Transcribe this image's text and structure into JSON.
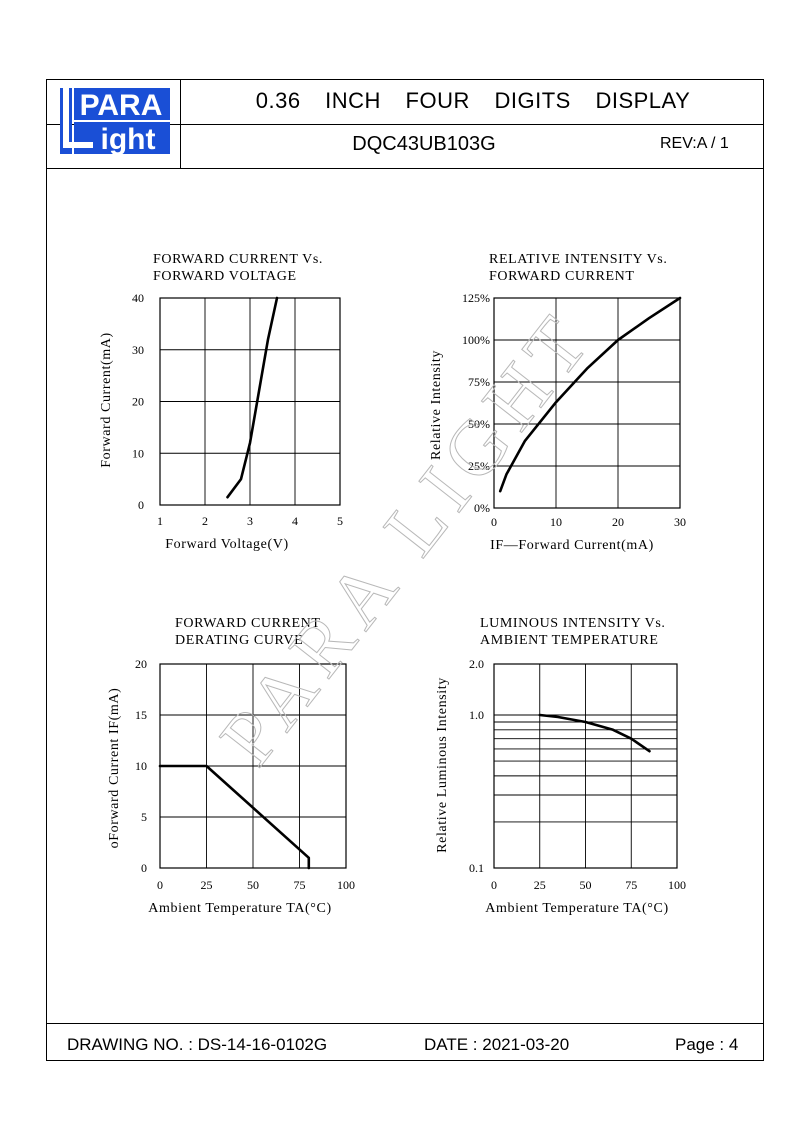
{
  "header": {
    "logo_top": "PARA",
    "logo_bottom": "ight",
    "title": "0.36 INCH FOUR DIGITS DISPLAY",
    "part_number": "DQC43UB103G",
    "revision": "REV:A / 1"
  },
  "watermark": "PARA LIGHT",
  "footer": {
    "drawing_no": "DRAWING NO. : DS-14-16-0102G",
    "date": "DATE : 2021-03-20",
    "page": "Page : 4"
  },
  "colors": {
    "logo_blue": "#1a4fd6",
    "ink": "#000000"
  },
  "chart_data": [
    {
      "type": "line",
      "title_line1": "FORWARD CURRENT Vs.",
      "title_line2": "FORWARD VOLTAGE",
      "xlabel": "Forward Voltage(V)",
      "ylabel": "Forward Current(mA)",
      "xlim": [
        1,
        5
      ],
      "ylim": [
        0,
        40
      ],
      "xticks": [
        "1",
        "2",
        "3",
        "4",
        "5"
      ],
      "yticks": [
        "0",
        "10",
        "20",
        "30",
        "40"
      ],
      "grid": true,
      "x": [
        2.5,
        2.8,
        3.0,
        3.2,
        3.4,
        3.6
      ],
      "y": [
        1.5,
        5,
        12,
        22,
        32,
        40
      ]
    },
    {
      "type": "line",
      "title_line1": "RELATIVE INTENSITY Vs.",
      "title_line2": "FORWARD CURRENT",
      "xlabel": "IF—Forward Current(mA)",
      "ylabel": "Relative Intensity",
      "xlim": [
        0,
        30
      ],
      "ylim": [
        0,
        125
      ],
      "xticks": [
        "0",
        "10",
        "20",
        "30"
      ],
      "yticks": [
        "0%",
        "25%",
        "50%",
        "75%",
        "100%",
        "125%"
      ],
      "grid": true,
      "x": [
        1,
        2,
        5,
        10,
        15,
        20,
        25,
        30
      ],
      "y": [
        10,
        20,
        40,
        63,
        83,
        100,
        113,
        125
      ]
    },
    {
      "type": "line",
      "title_line1": "FORWARD CURRENT",
      "title_line2": "DERATING CURVE",
      "xlabel": "Ambient Temperature TA(°C)",
      "ylabel": "oForward Current IF(mA)",
      "xlim": [
        0,
        100
      ],
      "ylim": [
        0,
        20
      ],
      "xticks": [
        "0",
        "25",
        "50",
        "75",
        "100"
      ],
      "yticks": [
        "0",
        "5",
        "10",
        "15",
        "20"
      ],
      "grid": true,
      "x": [
        0,
        25,
        80,
        80
      ],
      "y": [
        10,
        10,
        1,
        0
      ]
    },
    {
      "type": "line",
      "title_line1": "LUMINOUS INTENSITY Vs.",
      "title_line2": "AMBIENT TEMPERATURE",
      "xlabel": "Ambient Temperature TA(°C)",
      "ylabel": "Relative Luminous Intensity",
      "xlim": [
        0,
        100
      ],
      "ylim": [
        0.1,
        2.0
      ],
      "log_scale_y": true,
      "xticks": [
        "0",
        "25",
        "50",
        "75",
        "100"
      ],
      "yticks": [
        "0.1",
        "1.0",
        "2.0"
      ],
      "grid": true,
      "x": [
        25,
        35,
        50,
        65,
        75,
        85
      ],
      "y": [
        1.0,
        0.97,
        0.9,
        0.8,
        0.7,
        0.58
      ]
    }
  ]
}
